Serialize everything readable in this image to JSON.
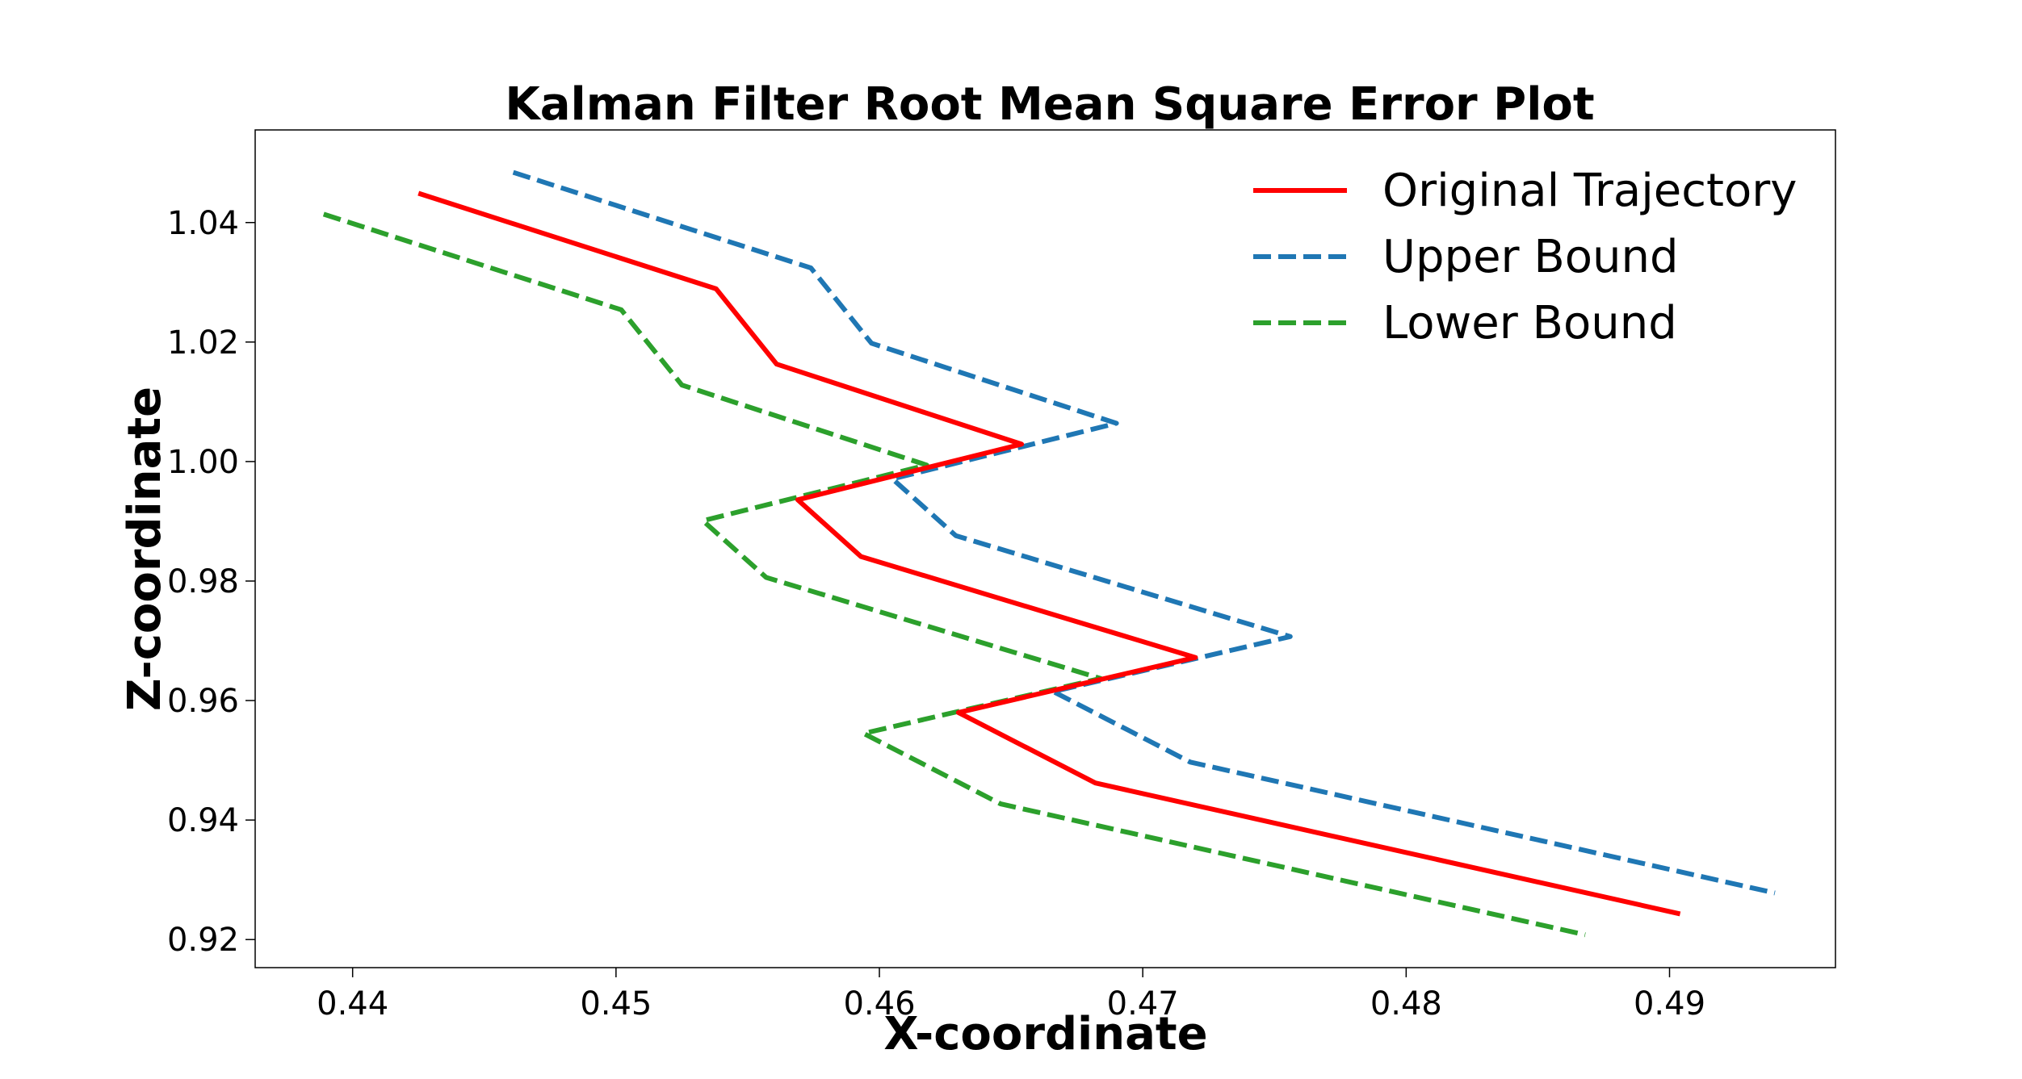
{
  "chart_data": {
    "type": "line",
    "title": "Kalman Filter Root Mean Square Error Plot",
    "xlabel": "X-coordinate",
    "ylabel": "Z-coordinate",
    "xlim": [
      0.4363,
      0.4963
    ],
    "ylim": [
      0.9153,
      1.0555
    ],
    "xticks": [
      0.44,
      0.45,
      0.46,
      0.47,
      0.48,
      0.49
    ],
    "xtick_labels": [
      "0.44",
      "0.45",
      "0.46",
      "0.47",
      "0.48",
      "0.49"
    ],
    "yticks": [
      0.92,
      0.94,
      0.96,
      0.98,
      1.0,
      1.02,
      1.04
    ],
    "ytick_labels": [
      "0.92",
      "0.94",
      "0.96",
      "0.98",
      "1.00",
      "1.02",
      "1.04"
    ],
    "grid": false,
    "legend_position": "top-right",
    "series": [
      {
        "name": "Original Trajectory",
        "color": "#ff0000",
        "style": "solid",
        "x": [
          0.4425,
          0.4538,
          0.4561,
          0.4654,
          0.4569,
          0.4593,
          0.472,
          0.463,
          0.4682,
          0.4904
        ],
        "y": [
          1.0449,
          1.0289,
          1.0163,
          1.0029,
          0.9936,
          0.9841,
          0.9672,
          0.958,
          0.9462,
          0.9243
        ]
      },
      {
        "name": "Upper Bound",
        "color": "#1f77b4",
        "style": "dashed",
        "x": [
          0.4461,
          0.4574,
          0.4597,
          0.469,
          0.4605,
          0.4629,
          0.4756,
          0.4666,
          0.4718,
          0.494
        ],
        "y": [
          1.0484,
          1.0324,
          1.0198,
          1.0064,
          0.9971,
          0.9876,
          0.9707,
          0.9615,
          0.9497,
          0.9278
        ]
      },
      {
        "name": "Lower Bound",
        "color": "#2ca02c",
        "style": "dashed",
        "x": [
          0.4389,
          0.4502,
          0.4525,
          0.4618,
          0.4533,
          0.4557,
          0.4684,
          0.4594,
          0.4646,
          0.4868
        ],
        "y": [
          1.0414,
          1.0254,
          1.0128,
          0.9994,
          0.9901,
          0.9806,
          0.9637,
          0.9545,
          0.9427,
          0.9208
        ]
      }
    ]
  }
}
